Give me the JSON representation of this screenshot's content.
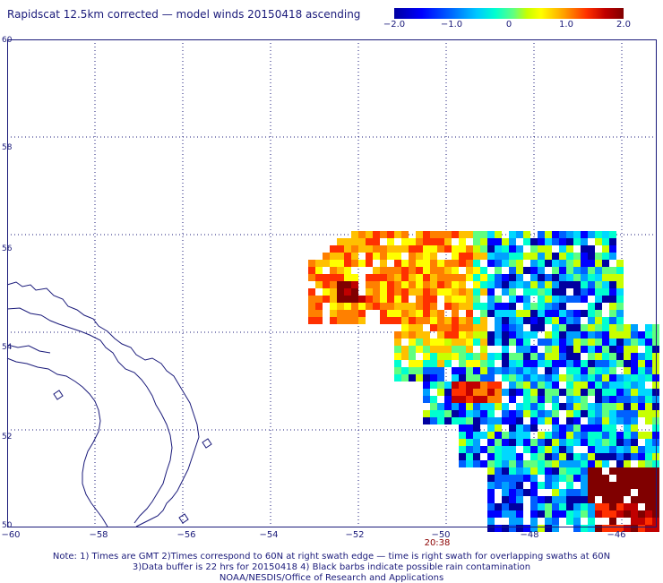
{
  "title": "Rapidscat 12.5km corrected — model winds 20150418 ascending",
  "colorbar": {
    "ticks": [
      "−2.0",
      "−1.0",
      "0",
      "1.0",
      "2.0"
    ],
    "range": [
      -2.0,
      2.0
    ]
  },
  "map": {
    "lat_labels": [
      "60",
      "58",
      "56",
      "54",
      "52",
      "50"
    ],
    "lon_labels": [
      "−60",
      "−58",
      "−56",
      "−54",
      "−52",
      "−50",
      "−48",
      "−46"
    ],
    "lat_range": [
      50,
      60
    ],
    "lon_range": [
      -60,
      -45.3
    ],
    "grid": "dotted",
    "coastline_color": "#1a1a7a",
    "swath_time": "20:38"
  },
  "notes": {
    "line1": "Note: 1) Times are GMT 2)Times correspond to 60N at right swath edge — time is right swath for overlapping swaths at 60N",
    "line2": "3)Data buffer is 22 hrs for 20150418 4) Black barbs indicate possible rain contamination",
    "line3": "NOAA/NESDIS/Office of Research and Applications"
  }
}
